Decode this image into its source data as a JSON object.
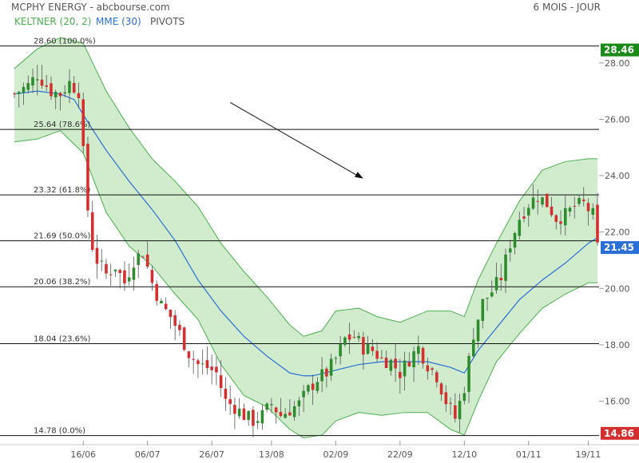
{
  "header": {
    "title": "MCPHY ENERGY - abcbourse.com",
    "period": "6 MOIS - JOUR"
  },
  "indicators": [
    {
      "label": "KELTNER (20, 2)",
      "color": "#4caf50"
    },
    {
      "label": "MME (30)",
      "color": "#2a6fd6"
    },
    {
      "label": "PIVOTS",
      "color": "#555555"
    }
  ],
  "colors": {
    "up": "#2e8b2e",
    "down": "#d32f2f",
    "band_fill": "#c9e8c4",
    "band_line": "#4caf50",
    "mme": "#2a6fd6"
  },
  "chart_data": {
    "type": "candlestick",
    "title": "MCPHY ENERGY - abcbourse.com",
    "ylim": [
      14.6,
      29.1
    ],
    "y_ticks": [
      "16.00",
      "18.00",
      "20.00",
      "22.00",
      "24.00",
      "26.00",
      "28.00"
    ],
    "x_tick_labels": [
      "16/06",
      "06/07",
      "26/07",
      "13/08",
      "02/09",
      "22/09",
      "12/10",
      "01/11",
      "19/11"
    ],
    "x_tick_index": [
      15,
      29,
      43,
      56,
      70,
      84,
      98,
      112,
      125
    ],
    "price_badges": [
      {
        "value": "28.46",
        "color": "#1b8a1b"
      },
      {
        "value": "21.45",
        "color": "#2a6fd6"
      },
      {
        "value": "14.86",
        "color": "#d32f2f"
      }
    ],
    "pivot_levels": [
      {
        "label": "28.60 (100.0%)",
        "value": 28.6
      },
      {
        "label": "25.64 (78.6%)",
        "value": 25.64
      },
      {
        "label": "23.32 (61.8%)",
        "value": 23.32
      },
      {
        "label": "21.69 (50.0%)",
        "value": 21.69
      },
      {
        "label": "20.06 (38.2%)",
        "value": 20.06
      },
      {
        "label": "18.04 (23.6%)",
        "value": 18.04
      },
      {
        "label": "14.78 (0.0%)",
        "value": 14.78
      }
    ],
    "close_path": [
      [
        0,
        26.9
      ],
      [
        3,
        27.2
      ],
      [
        5,
        27.6
      ],
      [
        8,
        27.0
      ],
      [
        10,
        26.9
      ],
      [
        12,
        27.3
      ],
      [
        14,
        27.0
      ],
      [
        15,
        24.8
      ],
      [
        16,
        22.8
      ],
      [
        17,
        21.5
      ],
      [
        18,
        21.0
      ],
      [
        20,
        20.5
      ],
      [
        22,
        20.8
      ],
      [
        24,
        20.2
      ],
      [
        26,
        21.0
      ],
      [
        28,
        21.3
      ],
      [
        30,
        20.2
      ],
      [
        32,
        19.4
      ],
      [
        34,
        19.0
      ],
      [
        36,
        18.4
      ],
      [
        38,
        17.7
      ],
      [
        40,
        17.3
      ],
      [
        42,
        17.2
      ],
      [
        44,
        17.0
      ],
      [
        46,
        16.0
      ],
      [
        48,
        15.8
      ],
      [
        50,
        15.5
      ],
      [
        52,
        15.3
      ],
      [
        54,
        15.5
      ],
      [
        56,
        15.9
      ],
      [
        58,
        15.5
      ],
      [
        60,
        15.7
      ],
      [
        62,
        15.9
      ],
      [
        64,
        16.4
      ],
      [
        66,
        16.8
      ],
      [
        68,
        17.0
      ],
      [
        70,
        17.5
      ],
      [
        72,
        18.2
      ],
      [
        74,
        18.3
      ],
      [
        76,
        17.9
      ],
      [
        78,
        17.8
      ],
      [
        80,
        17.5
      ],
      [
        82,
        17.4
      ],
      [
        84,
        17.0
      ],
      [
        86,
        17.5
      ],
      [
        88,
        17.9
      ],
      [
        90,
        17.3
      ],
      [
        92,
        16.9
      ],
      [
        94,
        16.0
      ],
      [
        96,
        15.4
      ],
      [
        98,
        16.5
      ],
      [
        100,
        18.4
      ],
      [
        102,
        19.5
      ],
      [
        104,
        19.9
      ],
      [
        106,
        20.4
      ],
      [
        108,
        21.6
      ],
      [
        110,
        22.5
      ],
      [
        112,
        23.0
      ],
      [
        114,
        23.3
      ],
      [
        116,
        23.0
      ],
      [
        118,
        22.5
      ],
      [
        120,
        22.6
      ],
      [
        122,
        22.9
      ],
      [
        124,
        23.0
      ],
      [
        126,
        22.6
      ],
      [
        127,
        21.45
      ]
    ],
    "mme_path": [
      [
        0,
        26.9
      ],
      [
        5,
        27.0
      ],
      [
        10,
        26.9
      ],
      [
        13,
        26.7
      ],
      [
        16,
        25.9
      ],
      [
        20,
        24.9
      ],
      [
        25,
        23.8
      ],
      [
        30,
        22.8
      ],
      [
        35,
        21.7
      ],
      [
        40,
        20.3
      ],
      [
        45,
        19.2
      ],
      [
        50,
        18.3
      ],
      [
        55,
        17.6
      ],
      [
        60,
        17.0
      ],
      [
        63,
        16.9
      ],
      [
        65,
        16.9
      ],
      [
        70,
        17.1
      ],
      [
        75,
        17.3
      ],
      [
        80,
        17.4
      ],
      [
        85,
        17.4
      ],
      [
        90,
        17.4
      ],
      [
        95,
        17.2
      ],
      [
        98,
        17.0
      ],
      [
        101,
        17.8
      ],
      [
        105,
        18.6
      ],
      [
        110,
        19.6
      ],
      [
        115,
        20.3
      ],
      [
        120,
        20.9
      ],
      [
        125,
        21.6
      ],
      [
        127,
        21.8
      ]
    ],
    "band_upper": [
      [
        0,
        27.8
      ],
      [
        5,
        28.5
      ],
      [
        10,
        28.9
      ],
      [
        15,
        28.7
      ],
      [
        20,
        27.0
      ],
      [
        25,
        25.7
      ],
      [
        30,
        24.6
      ],
      [
        35,
        23.8
      ],
      [
        40,
        22.9
      ],
      [
        45,
        21.6
      ],
      [
        50,
        20.6
      ],
      [
        55,
        19.7
      ],
      [
        60,
        18.7
      ],
      [
        63,
        18.3
      ],
      [
        67,
        18.5
      ],
      [
        70,
        19.2
      ],
      [
        75,
        19.3
      ],
      [
        79,
        19.0
      ],
      [
        84,
        18.8
      ],
      [
        90,
        19.2
      ],
      [
        95,
        19.2
      ],
      [
        98,
        19.0
      ],
      [
        101,
        20.3
      ],
      [
        105,
        21.6
      ],
      [
        110,
        23.1
      ],
      [
        115,
        24.2
      ],
      [
        120,
        24.5
      ],
      [
        125,
        24.6
      ],
      [
        127,
        24.6
      ]
    ],
    "band_lower": [
      [
        0,
        25.2
      ],
      [
        5,
        25.3
      ],
      [
        10,
        25.6
      ],
      [
        15,
        24.8
      ],
      [
        20,
        22.7
      ],
      [
        25,
        21.5
      ],
      [
        30,
        20.8
      ],
      [
        35,
        19.8
      ],
      [
        40,
        18.9
      ],
      [
        45,
        17.3
      ],
      [
        50,
        16.2
      ],
      [
        55,
        15.8
      ],
      [
        60,
        15.0
      ],
      [
        63,
        14.7
      ],
      [
        67,
        14.8
      ],
      [
        70,
        15.3
      ],
      [
        75,
        15.6
      ],
      [
        80,
        15.5
      ],
      [
        85,
        15.6
      ],
      [
        90,
        15.6
      ],
      [
        95,
        15.0
      ],
      [
        98,
        14.8
      ],
      [
        101,
        16.0
      ],
      [
        105,
        17.4
      ],
      [
        110,
        18.4
      ],
      [
        115,
        19.3
      ],
      [
        120,
        19.8
      ],
      [
        125,
        20.2
      ],
      [
        127,
        20.2
      ]
    ],
    "arrow": {
      "from": [
        47,
        26.6
      ],
      "to": [
        76,
        23.9
      ]
    }
  }
}
